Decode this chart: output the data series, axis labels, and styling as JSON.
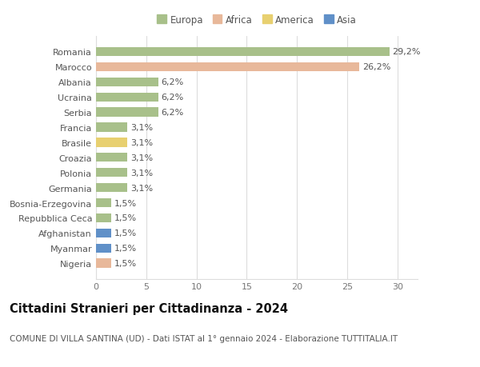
{
  "countries": [
    "Romania",
    "Marocco",
    "Albania",
    "Ucraina",
    "Serbia",
    "Francia",
    "Brasile",
    "Croazia",
    "Polonia",
    "Germania",
    "Bosnia-Erzegovina",
    "Repubblica Ceca",
    "Afghanistan",
    "Myanmar",
    "Nigeria"
  ],
  "values": [
    29.2,
    26.2,
    6.2,
    6.2,
    6.2,
    3.1,
    3.1,
    3.1,
    3.1,
    3.1,
    1.5,
    1.5,
    1.5,
    1.5,
    1.5
  ],
  "labels": [
    "29,2%",
    "26,2%",
    "6,2%",
    "6,2%",
    "6,2%",
    "3,1%",
    "3,1%",
    "3,1%",
    "3,1%",
    "3,1%",
    "1,5%",
    "1,5%",
    "1,5%",
    "1,5%",
    "1,5%"
  ],
  "continents": [
    "Europa",
    "Africa",
    "Europa",
    "Europa",
    "Europa",
    "Europa",
    "America",
    "Europa",
    "Europa",
    "Europa",
    "Europa",
    "Europa",
    "Asia",
    "Asia",
    "Africa"
  ],
  "colors": {
    "Europa": "#a8c08a",
    "Africa": "#e8b89a",
    "America": "#e8d070",
    "Asia": "#6090c8"
  },
  "legend_items": [
    "Europa",
    "Africa",
    "America",
    "Asia"
  ],
  "legend_colors": [
    "#a8c08a",
    "#e8b89a",
    "#e8d070",
    "#6090c8"
  ],
  "title": "Cittadini Stranieri per Cittadinanza - 2024",
  "subtitle": "COMUNE DI VILLA SANTINA (UD) - Dati ISTAT al 1° gennaio 2024 - Elaborazione TUTTITALIA.IT",
  "xlim": [
    0,
    32
  ],
  "xticks": [
    0,
    5,
    10,
    15,
    20,
    25,
    30
  ],
  "background_color": "#ffffff",
  "grid_color": "#dddddd",
  "bar_height": 0.6,
  "label_fontsize": 8,
  "tick_fontsize": 8,
  "title_fontsize": 10.5,
  "subtitle_fontsize": 7.5
}
